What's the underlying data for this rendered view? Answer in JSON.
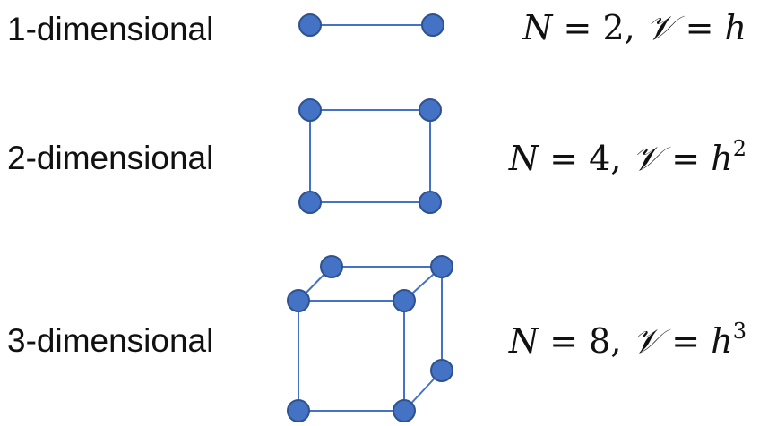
{
  "rows": [
    {
      "label": "1-dimensional",
      "N": "2",
      "V": "h",
      "exp": ""
    },
    {
      "label": "2-dimensional",
      "N": "4",
      "V": "h",
      "exp": "2"
    },
    {
      "label": "3-dimensional",
      "N": "8",
      "V": "h",
      "exp": "3"
    }
  ],
  "symbols": {
    "N": "N",
    "equals": "=",
    "comma": ",",
    "volume": "𝒱"
  },
  "colors": {
    "vertex_fill": "#4472c4",
    "vertex_stroke": "#2f528f",
    "edge": "#4472c4"
  }
}
